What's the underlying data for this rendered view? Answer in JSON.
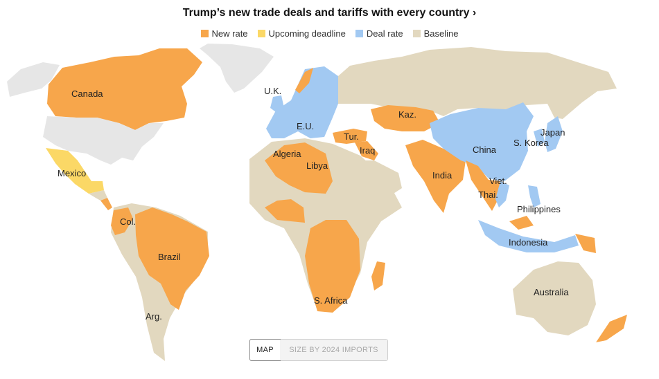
{
  "title": "Trump’s new trade deals and tariffs with every country ›",
  "legend": [
    {
      "label": "New rate",
      "color": "#f7a64b"
    },
    {
      "label": "Upcoming deadline",
      "color": "#fbd866"
    },
    {
      "label": "Deal rate",
      "color": "#a2c9f2"
    },
    {
      "label": "Baseline",
      "color": "#e2d8bf"
    }
  ],
  "no_data_color": "#e6e6e6",
  "labels": {
    "canada": "Canada",
    "uk": "U.K.",
    "eu": "E.U.",
    "kaz": "Kaz.",
    "tur": "Tur.",
    "iraq": "Iraq",
    "algeria": "Algeria",
    "libya": "Libya",
    "mexico": "Mexico",
    "china": "China",
    "japan": "Japan",
    "skorea": "S. Korea",
    "india": "India",
    "viet": "Viet.",
    "thai": "Thai.",
    "philippines": "Philippines",
    "indonesia": "Indonesia",
    "col": "Col.",
    "brazil": "Brazil",
    "arg": "Arg.",
    "safrica": "S. Africa",
    "australia": "Australia"
  },
  "toggle": {
    "map": "MAP",
    "size": "SIZE BY 2024 IMPORTS"
  }
}
